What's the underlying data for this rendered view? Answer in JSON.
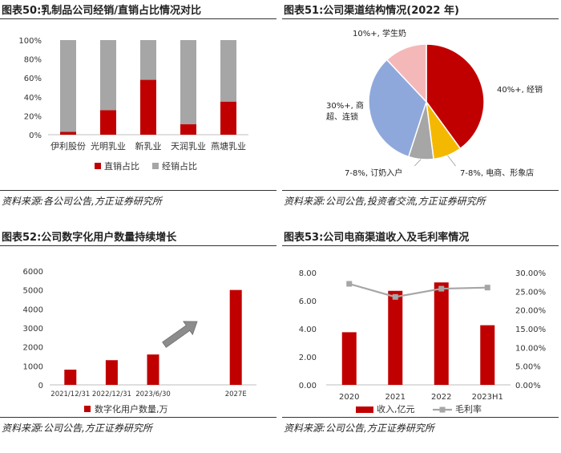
{
  "colors": {
    "red": "#C00000",
    "gray": "#A6A6A6",
    "arrow": "#8C8C8C"
  },
  "chart_data": [
    {
      "id": "chart50",
      "type": "bar",
      "stacked": true,
      "title": "图表50:乳制品公司经销/直销占比情况对比",
      "source": "资料来源:各公司公告,方正证券研究所",
      "categories": [
        "伊利股份",
        "光明乳业",
        "新乳业",
        "天润乳业",
        "燕塘乳业"
      ],
      "series": [
        {
          "name": "直销占比",
          "values": [
            3,
            26,
            58,
            11,
            35
          ],
          "color": "#C00000"
        },
        {
          "name": "经销占比",
          "values": [
            97,
            74,
            42,
            89,
            65
          ],
          "color": "#A6A6A6"
        }
      ],
      "yticks": [
        "0%",
        "20%",
        "40%",
        "60%",
        "80%",
        "100%"
      ],
      "ylim": [
        0,
        100
      ],
      "legend": "bottom"
    },
    {
      "id": "chart51",
      "type": "pie",
      "title": "图表51:公司渠道结构情况(2022 年)",
      "source": "资料来源:公司公告,投资者交流,方正证券研究所",
      "slices": [
        {
          "label_lines": [
            "40%+, 经销"
          ],
          "value": 40,
          "color": "#C00000"
        },
        {
          "label_lines": [
            "7-8%, 电商、形象店"
          ],
          "value": 8,
          "color": "#F5B800"
        },
        {
          "label_lines": [
            "7-8%, 订奶入户"
          ],
          "value": 7,
          "color": "#A6A6A6"
        },
        {
          "label_lines": [
            "30%+, 商",
            "超、连锁"
          ],
          "value": 33,
          "color": "#8FA8DC"
        },
        {
          "label_lines": [
            "10%+, 学生奶"
          ],
          "value": 12,
          "color": "#F4B8B8"
        }
      ]
    },
    {
      "id": "chart52",
      "type": "bar",
      "title": "图表52:公司数字化用户数量持续增长",
      "source": "资料来源:公司公告,方正证券研究所",
      "categories": [
        "2021/12/31",
        "2022/12/31",
        "2023/6/30",
        "",
        "2027E"
      ],
      "series": [
        {
          "name": "数字化用户数量,万",
          "values": [
            800,
            1300,
            1600,
            null,
            5000
          ],
          "color": "#C00000"
        }
      ],
      "yticks": [
        "0",
        "1000",
        "2000",
        "3000",
        "4000",
        "5000",
        "6000"
      ],
      "ylim": [
        0,
        6000
      ],
      "legend": "bottom"
    },
    {
      "id": "chart53",
      "type": "bar",
      "title": "图表53:公司电商渠道收入及毛利率情况",
      "source": "资料来源:公司公告,方正证券研究所",
      "categories": [
        "2020",
        "2021",
        "2022",
        "2023H1"
      ],
      "series": [
        {
          "name": "收入,亿元",
          "values": [
            3.75,
            6.7,
            7.3,
            4.25
          ],
          "color": "#C00000",
          "axis": "left"
        },
        {
          "name": "毛利率",
          "values": [
            27.0,
            23.5,
            25.7,
            26.0
          ],
          "color": "#A6A6A6",
          "axis": "right",
          "type": "line"
        }
      ],
      "yticks_left": [
        "0.00",
        "2.00",
        "4.00",
        "6.00",
        "8.00"
      ],
      "ylim_left": [
        0,
        8
      ],
      "yticks_right": [
        "0.00%",
        "5.00%",
        "10.00%",
        "15.00%",
        "20.00%",
        "25.00%",
        "30.00%"
      ],
      "ylim_right": [
        0,
        30
      ],
      "legend": "bottom"
    }
  ]
}
